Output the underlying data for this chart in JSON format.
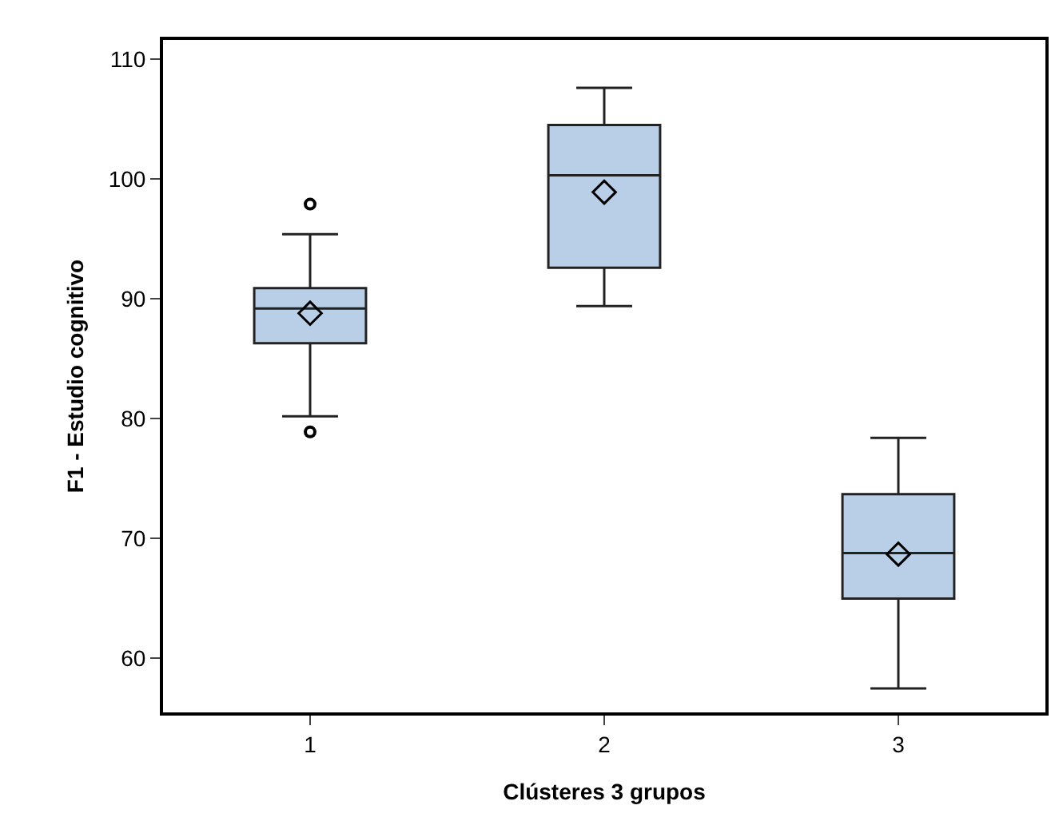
{
  "chart_data": {
    "type": "box",
    "xlabel": "Clústeres 3 grupos",
    "ylabel": "F1 - Estudio cognitivo",
    "categories": [
      "1",
      "2",
      "3"
    ],
    "boxes": [
      {
        "low": 80.2,
        "q1": 86.3,
        "median": 89.2,
        "q3": 90.9,
        "high": 95.4,
        "mean": 88.8,
        "outliers": [
          97.9,
          78.9
        ]
      },
      {
        "low": 89.4,
        "q1": 92.6,
        "median": 100.3,
        "q3": 104.5,
        "high": 107.6,
        "mean": 98.9
      },
      {
        "low": 57.5,
        "q1": 65.0,
        "median": 68.8,
        "q3": 73.7,
        "high": 78.4,
        "mean": 68.7
      }
    ],
    "color": "#b9cfe8",
    "ylim": [
      55.5,
      111.6
    ],
    "yticks": [
      60,
      70,
      80,
      90,
      100,
      110
    ]
  }
}
